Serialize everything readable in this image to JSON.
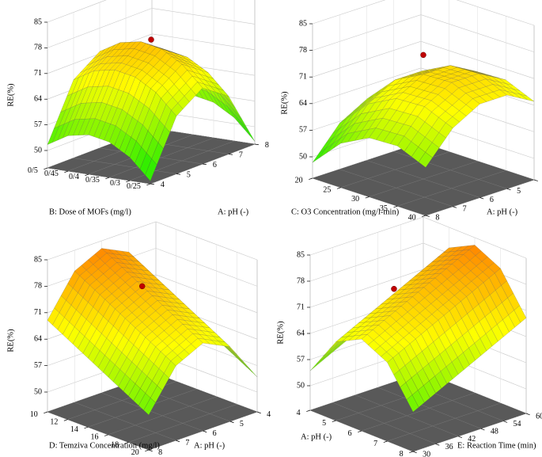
{
  "chart_data": [
    {
      "type": "surface3d",
      "zlabel": "RE(%)",
      "xlabel": "A: pH (-)",
      "ylabel": "B: Dose of MOFs (mg/l)",
      "xlim": [
        4,
        8
      ],
      "xticks": [
        4,
        5,
        6,
        7,
        8
      ],
      "ylim": [
        0.25,
        0.5
      ],
      "yticks": [
        {
          "value": 0.25,
          "label": "0/25"
        },
        {
          "value": 0.3,
          "label": "0/3"
        },
        {
          "value": 0.35,
          "label": "0/35"
        },
        {
          "value": 0.4,
          "label": "0/4"
        },
        {
          "value": 0.45,
          "label": "0/45"
        },
        {
          "value": 0.5,
          "label": "0/5"
        }
      ],
      "zlim": [
        50,
        85
      ],
      "zticks": [
        50,
        57,
        64,
        71,
        78,
        85
      ],
      "z": [
        [
          46,
          51.6,
          54.9,
          56,
          54.9,
          51.6
        ],
        [
          61,
          66.6,
          69.9,
          71,
          69.9,
          66.6
        ],
        [
          66,
          71.6,
          74.9,
          76,
          74.9,
          71.6
        ],
        [
          61,
          66.6,
          69.9,
          71,
          69.9,
          66.6
        ],
        [
          46,
          51.6,
          54.9,
          56,
          54.9,
          51.6
        ]
      ],
      "point": {
        "x": 6,
        "y": 0.375,
        "z": 77
      },
      "point_color": "#c00000",
      "colormap": [
        "#33ee00",
        "#ffff00",
        "#ff7700"
      ]
    },
    {
      "type": "surface3d",
      "zlabel": "RE(%)",
      "xlabel": "A: pH (-)",
      "ylabel": "C: O3 Concentration (mg/l-min)",
      "xlim": [
        4,
        8
      ],
      "xticks": [
        4,
        5,
        6,
        7,
        8
      ],
      "ylim": [
        20,
        40
      ],
      "yticks": [
        20,
        25,
        30,
        35,
        40
      ],
      "zlim": [
        50,
        85
      ],
      "zticks": [
        50,
        57,
        64,
        71,
        78,
        85
      ],
      "z": [
        [
          56.5,
          64,
          67.9,
          68.2,
          65
        ],
        [
          60.5,
          68,
          71.9,
          72.2,
          69
        ],
        [
          60.5,
          68,
          71.9,
          72.2,
          69
        ],
        [
          56.5,
          64,
          67.9,
          68.2,
          65
        ],
        [
          48.5,
          56,
          59.9,
          60.2,
          57
        ]
      ],
      "point": {
        "x": 6,
        "y": 30,
        "z": 77
      },
      "point_color": "#c00000",
      "colormap": [
        "#33ee00",
        "#ffff00",
        "#ff7700"
      ]
    },
    {
      "type": "surface3d",
      "zlabel": "RE(%)",
      "xlabel": "A: pH (-)",
      "ylabel": "D: Temziva Concentration (mg/l)",
      "xlim": [
        4,
        8
      ],
      "xticks": [
        4,
        5,
        6,
        7,
        8
      ],
      "ylim": [
        10,
        20
      ],
      "yticks": [
        10,
        12,
        14,
        16,
        18,
        20
      ],
      "zlim": [
        50,
        85
      ],
      "zticks": [
        50,
        57,
        64,
        71,
        78,
        85
      ],
      "z": [
        [
          69,
          66,
          63,
          60,
          57,
          54
        ],
        [
          79.5,
          76.5,
          73.5,
          70.5,
          67.5,
          64.5
        ],
        [
          83,
          80,
          77,
          74,
          71,
          68
        ],
        [
          79.5,
          76.5,
          73.5,
          70.5,
          67.5,
          64.5
        ],
        [
          69,
          66,
          63,
          60,
          57,
          54
        ]
      ],
      "point": {
        "x": 6,
        "y": 14,
        "z": 77
      },
      "point_color": "#c00000",
      "colormap": [
        "#33ee00",
        "#ffff00",
        "#ff7700"
      ]
    },
    {
      "type": "surface3d",
      "zlabel": "RE(%)",
      "xlabel": "A: pH (-)",
      "ylabel": "E: Reaction Time (min)",
      "xlim": [
        4,
        8
      ],
      "xticks": [
        4,
        5,
        6,
        7,
        8
      ],
      "ylim": [
        30,
        60
      ],
      "yticks": [
        30,
        36,
        42,
        48,
        54,
        60
      ],
      "zlim": [
        50,
        85
      ],
      "zticks": [
        50,
        57,
        64,
        71,
        78,
        85
      ],
      "z": [
        [
          54,
          57,
          60,
          63,
          66,
          69
        ],
        [
          64.5,
          67.5,
          70.5,
          73.5,
          76.5,
          79.5
        ],
        [
          68,
          71,
          74,
          77,
          80,
          83
        ],
        [
          64.5,
          67.5,
          70.5,
          73.5,
          76.5,
          79.5
        ],
        [
          54,
          57,
          60,
          63,
          66,
          69
        ]
      ],
      "point": {
        "x": 5.5,
        "y": 42,
        "z": 76
      },
      "point_color": "#c00000",
      "colormap": [
        "#33ee00",
        "#ffff00",
        "#ff7700"
      ]
    }
  ]
}
